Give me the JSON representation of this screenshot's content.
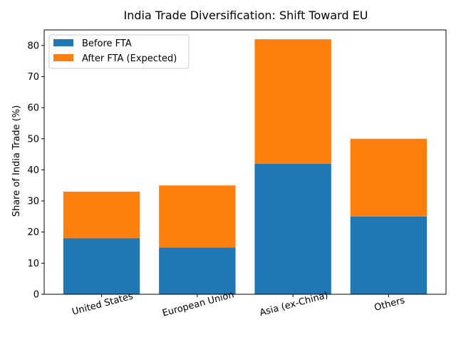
{
  "chart_data": {
    "type": "bar",
    "stacked": true,
    "title": "India Trade Diversification: Shift Toward EU",
    "xlabel": "",
    "ylabel": "Share of India Trade (%)",
    "ylim": [
      0,
      85
    ],
    "yticks": [
      0,
      10,
      20,
      30,
      40,
      50,
      60,
      70,
      80
    ],
    "categories": [
      "United States",
      "European Union",
      "Asia (ex-China)",
      "Others"
    ],
    "series": [
      {
        "name": "Before FTA",
        "values": [
          18,
          15,
          42,
          25
        ],
        "color": "#1f77b4"
      },
      {
        "name": "After FTA (Expected)",
        "values": [
          15,
          20,
          40,
          25
        ],
        "color": "#ff7f0e"
      }
    ],
    "grid": false,
    "legend_position": "top-left"
  }
}
